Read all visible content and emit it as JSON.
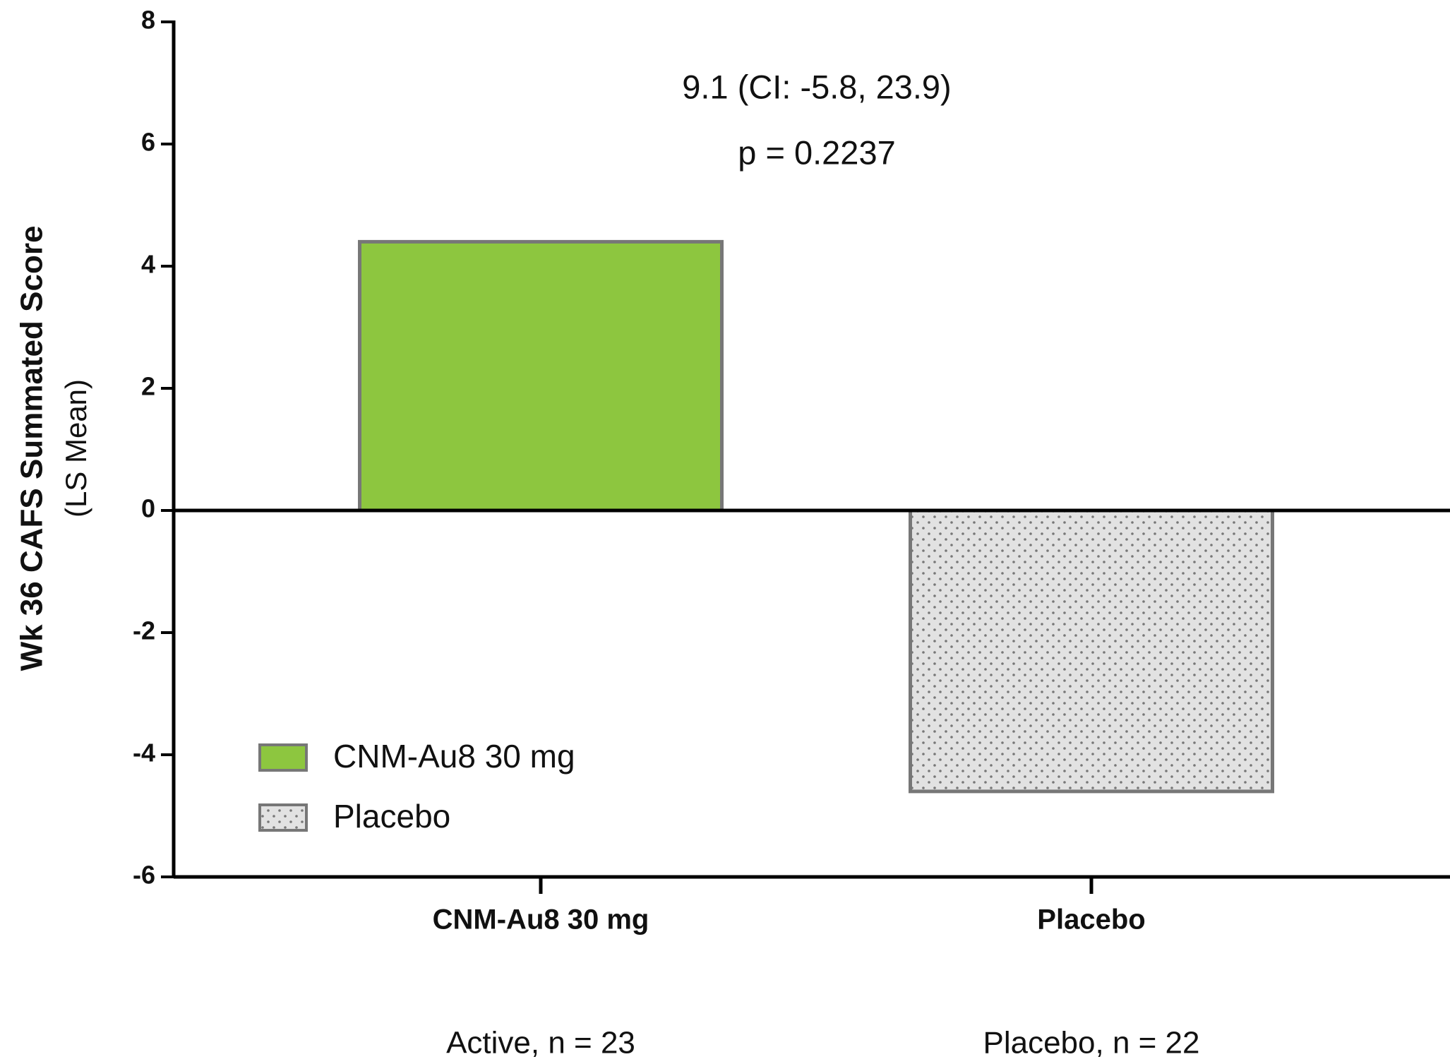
{
  "chart_data": {
    "type": "bar",
    "ylabel": "Wk 36 CAFS Summated Score",
    "ylabel_sub": "(LS Mean)",
    "annotations": [
      "9.1 (CI: -5.8, 23.9)",
      "p = 0.2237"
    ],
    "categories": [
      "CNM-Au8 30 mg",
      "Placebo"
    ],
    "category_notes": [
      "Active, n = 23",
      "Placebo, n = 22"
    ],
    "series": [
      {
        "name": "CNM-Au8 30 mg",
        "color": "#8dc63f",
        "values": [
          4.4,
          null
        ]
      },
      {
        "name": "Placebo",
        "color": "#e2e2e2",
        "pattern": "dots",
        "values": [
          null,
          -4.6
        ]
      }
    ],
    "ylim": [
      -6,
      8
    ],
    "yticks": [
      -6,
      -4,
      -2,
      0,
      2,
      4,
      6,
      8
    ],
    "legend": "lower left"
  }
}
